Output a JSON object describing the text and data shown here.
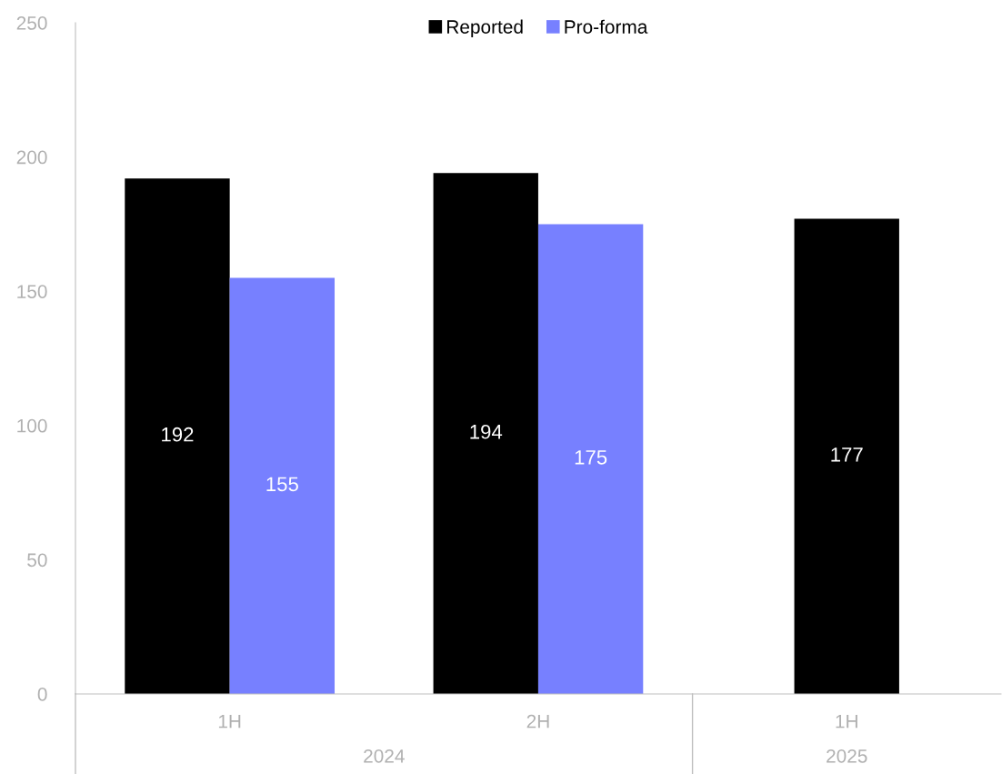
{
  "chart_data": {
    "type": "bar",
    "categories": [
      "1H",
      "2H",
      "1H"
    ],
    "series": [
      {
        "name": "Reported",
        "color": "#000000",
        "values": [
          192,
          194,
          177
        ]
      },
      {
        "name": "Pro-forma",
        "color": "#7780ff",
        "values": [
          155,
          175,
          null
        ]
      }
    ],
    "ylim": [
      0,
      250
    ],
    "yticks": [
      0,
      50,
      100,
      150,
      200,
      250
    ],
    "data_labels": true,
    "legend": "top",
    "grid": false,
    "annotations": [
      "2024",
      "2025"
    ]
  }
}
